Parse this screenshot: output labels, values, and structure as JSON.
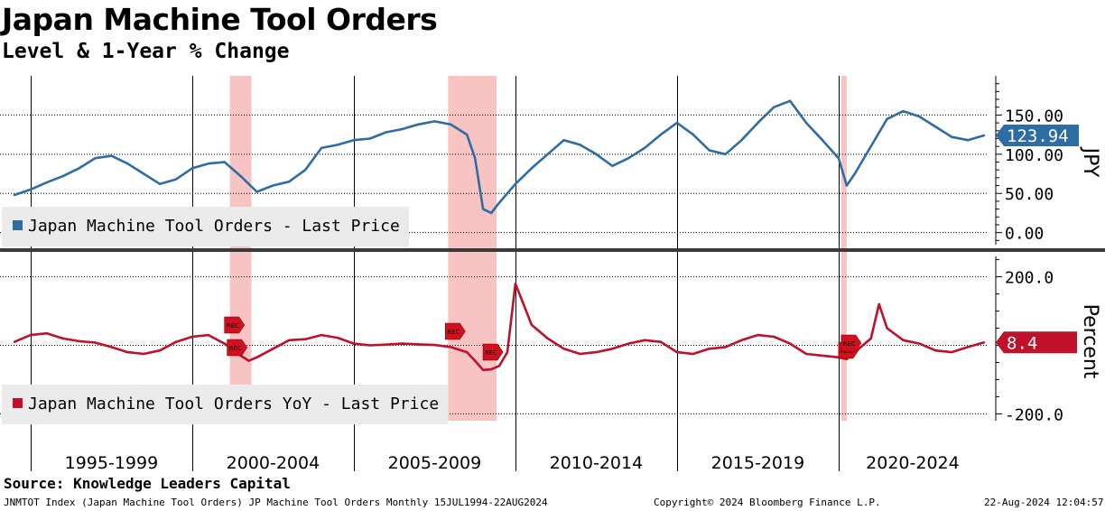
{
  "title": "Japan Machine Tool Orders",
  "subtitle": "Level & 1-Year % Change",
  "source": "Source: Knowledge Leaders Capital",
  "footer": {
    "left": "JNMTOT Index (Japan Machine Tool Orders) JP Machine Tool Orders  Monthly 15JUL1994-22AUG2024",
    "center": "Copyright© 2024 Bloomberg Finance L.P.",
    "right": "22-Aug-2024 12:04:57"
  },
  "colors": {
    "level": "#2e6ca4",
    "yoy": "#c0102a",
    "recession": "#f7b9b9"
  },
  "chart_data": [
    {
      "type": "line",
      "series": [
        {
          "name": "Japan Machine Tool Orders - Last Price",
          "x": [
            "1994-07",
            "1995-01",
            "1995-07",
            "1996-01",
            "1996-07",
            "1997-01",
            "1997-07",
            "1998-01",
            "1998-07",
            "1999-01",
            "1999-07",
            "2000-01",
            "2000-07",
            "2001-01",
            "2001-07",
            "2002-01",
            "2002-07",
            "2003-01",
            "2003-07",
            "2004-01",
            "2004-07",
            "2005-01",
            "2005-07",
            "2006-01",
            "2006-07",
            "2007-01",
            "2007-07",
            "2008-01",
            "2008-07",
            "2008-10",
            "2009-01",
            "2009-04",
            "2009-07",
            "2010-01",
            "2010-07",
            "2011-01",
            "2011-07",
            "2012-01",
            "2012-07",
            "2013-01",
            "2013-07",
            "2014-01",
            "2014-07",
            "2015-01",
            "2015-07",
            "2016-01",
            "2016-07",
            "2017-01",
            "2017-07",
            "2018-01",
            "2018-07",
            "2019-01",
            "2019-07",
            "2020-01",
            "2020-04",
            "2020-07",
            "2021-01",
            "2021-07",
            "2022-01",
            "2022-07",
            "2023-01",
            "2023-07",
            "2024-01",
            "2024-07"
          ],
          "values": [
            48,
            55,
            64,
            72,
            82,
            95,
            98,
            88,
            75,
            62,
            68,
            82,
            88,
            90,
            72,
            52,
            60,
            65,
            80,
            108,
            112,
            118,
            120,
            128,
            132,
            138,
            142,
            138,
            125,
            95,
            30,
            25,
            38,
            62,
            82,
            100,
            118,
            112,
            100,
            85,
            95,
            108,
            125,
            140,
            125,
            105,
            100,
            118,
            140,
            160,
            168,
            140,
            118,
            95,
            60,
            75,
            110,
            145,
            155,
            148,
            135,
            122,
            118,
            124
          ]
        }
      ],
      "ylabel": "JPY",
      "ylim": [
        -20,
        200
      ],
      "yticks": [
        "0.00",
        "50.00",
        "100.00",
        "150.00"
      ],
      "last_value_label": "123.94",
      "legend": "Japan Machine Tool Orders - Last Price"
    },
    {
      "type": "line",
      "series": [
        {
          "name": "Japan Machine Tool Orders YoY - Last Price",
          "x": [
            "1994-07",
            "1995-01",
            "1995-07",
            "1996-01",
            "1996-07",
            "1997-01",
            "1997-07",
            "1998-01",
            "1998-07",
            "1999-01",
            "1999-07",
            "2000-01",
            "2000-07",
            "2001-01",
            "2001-07",
            "2001-10",
            "2002-01",
            "2002-07",
            "2003-01",
            "2003-07",
            "2004-01",
            "2004-07",
            "2005-01",
            "2005-07",
            "2006-01",
            "2006-07",
            "2007-01",
            "2007-07",
            "2008-01",
            "2008-07",
            "2008-10",
            "2009-01",
            "2009-04",
            "2009-07",
            "2009-10",
            "2010-01",
            "2010-04",
            "2010-07",
            "2011-01",
            "2011-07",
            "2012-01",
            "2012-07",
            "2013-01",
            "2013-07",
            "2014-01",
            "2014-07",
            "2015-01",
            "2015-07",
            "2016-01",
            "2016-07",
            "2017-01",
            "2017-07",
            "2018-01",
            "2018-07",
            "2019-01",
            "2019-07",
            "2020-01",
            "2020-04",
            "2020-07",
            "2021-01",
            "2021-04",
            "2021-07",
            "2022-01",
            "2022-07",
            "2023-01",
            "2023-07",
            "2024-01",
            "2024-07"
          ],
          "values": [
            10,
            30,
            35,
            20,
            12,
            8,
            -5,
            -20,
            -25,
            -15,
            10,
            25,
            30,
            5,
            -30,
            -45,
            -35,
            -10,
            15,
            18,
            30,
            22,
            5,
            0,
            2,
            5,
            3,
            1,
            -5,
            -20,
            -45,
            -72,
            -70,
            -60,
            -20,
            180,
            120,
            60,
            20,
            -10,
            -25,
            -20,
            -10,
            5,
            15,
            10,
            -20,
            -25,
            -10,
            -5,
            15,
            30,
            25,
            5,
            -25,
            -30,
            -35,
            -40,
            -20,
            20,
            120,
            50,
            15,
            5,
            -15,
            -20,
            -5,
            8.4
          ]
        }
      ],
      "ylabel": "Percent",
      "ylim": [
        -220,
        270
      ],
      "yticks": [
        "-200.0",
        "200.0"
      ],
      "last_value_label": "8.4",
      "legend": "Japan Machine Tool Orders YoY - Last Price",
      "event_markers": [
        "REC",
        "REC",
        "REC",
        "REC",
        "REC",
        "REC"
      ]
    }
  ],
  "x_axis": {
    "tick_labels": [
      "1995-1999",
      "2000-2004",
      "2005-2009",
      "2010-2014",
      "2015-2019",
      "2020-2024"
    ]
  },
  "recessions": [
    [
      "2001-03",
      "2001-11"
    ],
    [
      "2007-12",
      "2009-06"
    ],
    [
      "2020-02",
      "2020-04"
    ]
  ]
}
